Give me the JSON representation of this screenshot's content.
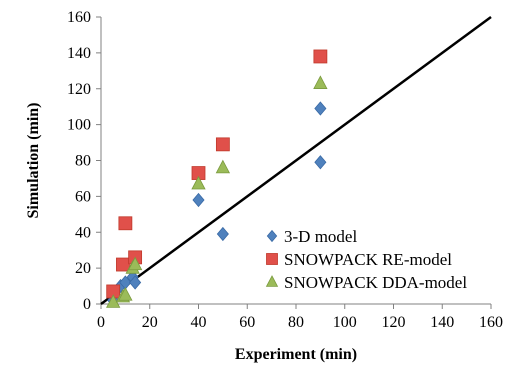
{
  "chart_data": {
    "type": "scatter",
    "title": "",
    "xlabel": "Experiment (min)",
    "ylabel": "Simulation  (min)",
    "xlim": [
      0,
      160
    ],
    "ylim": [
      0,
      160
    ],
    "x_ticks": [
      "0",
      "20",
      "40",
      "60",
      "80",
      "100",
      "120",
      "140",
      "160"
    ],
    "y_ticks": [
      "0",
      "20",
      "40",
      "60",
      "80",
      "100",
      "120",
      "140",
      "160"
    ],
    "grid": false,
    "legend_position": "bottom-right",
    "reference_line": {
      "x": [
        0,
        160
      ],
      "y": [
        0,
        160
      ],
      "color": "#000000"
    },
    "series": [
      {
        "name": "3-D model",
        "marker": "diamond",
        "color": "#4f81bd",
        "x": [
          5,
          8,
          10,
          13,
          14,
          40,
          50,
          90,
          90
        ],
        "y": [
          2,
          10,
          12,
          15,
          12,
          58,
          39,
          109,
          79
        ]
      },
      {
        "name": "SNOWPACK RE-model",
        "marker": "square",
        "color": "#e0504a",
        "x": [
          5,
          9,
          10,
          14,
          40,
          50,
          90
        ],
        "y": [
          7,
          22,
          45,
          26,
          73,
          89,
          138
        ]
      },
      {
        "name": "SNOWPACK DDA-model",
        "marker": "triangle",
        "color": "#9bbb59",
        "x": [
          5,
          9,
          10,
          13,
          14,
          40,
          50,
          90
        ],
        "y": [
          1,
          4,
          5,
          20,
          22,
          67,
          76,
          123
        ]
      }
    ]
  }
}
